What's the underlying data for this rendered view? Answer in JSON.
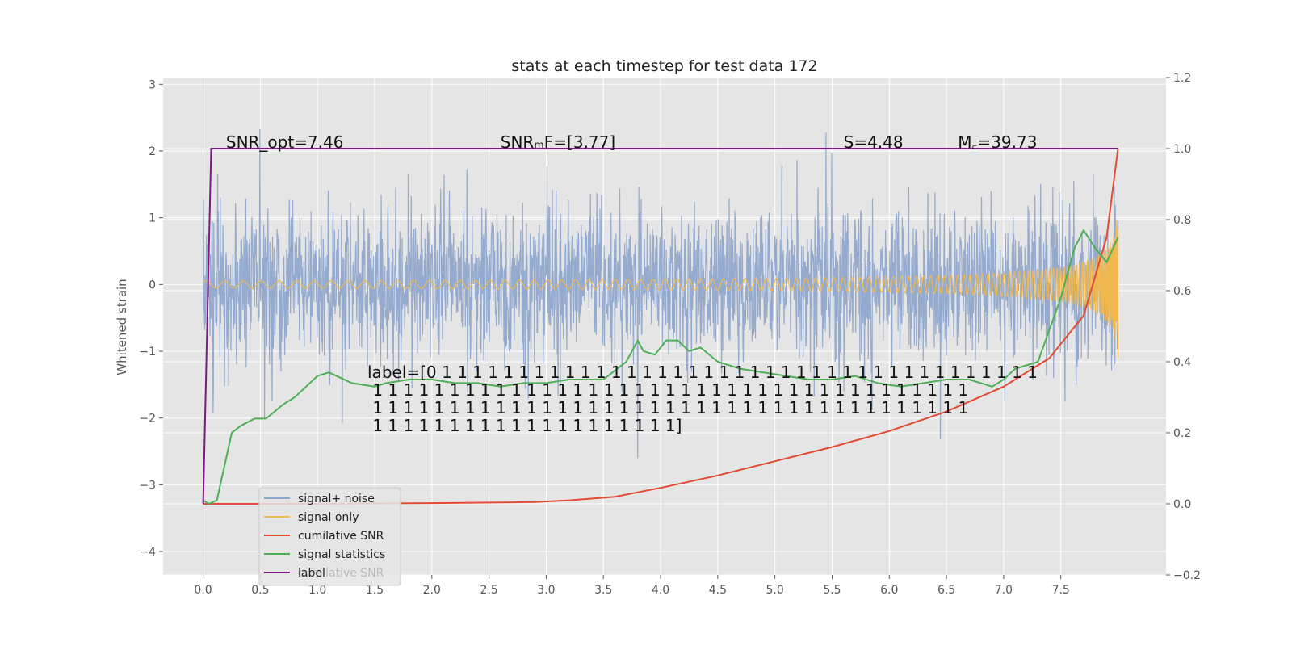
{
  "chart_data": {
    "type": "line",
    "title": "stats at each timestep for test data 172",
    "ylabel": "Whitened strain",
    "xlim": [
      -0.35,
      8.42
    ],
    "ylim": [
      -4.35,
      3.1
    ],
    "y2lim": [
      -0.2,
      1.2
    ],
    "grid": true,
    "xticks": [
      "0.0",
      "0.5",
      "1.0",
      "1.5",
      "2.0",
      "2.5",
      "3.0",
      "3.5",
      "4.0",
      "4.5",
      "5.0",
      "5.5",
      "6.0",
      "6.5",
      "7.0",
      "7.5"
    ],
    "yticks": [
      "3",
      "2",
      "1",
      "0",
      "−1",
      "−2",
      "−3",
      "−4"
    ],
    "y2ticks": [
      "1.2",
      "1.0",
      "0.8",
      "0.6",
      "0.4",
      "0.2",
      "0.0",
      "−0.2"
    ],
    "legend_position": "lower-left",
    "series": [
      {
        "name": "signal+ noise",
        "color": "#8fa6cc",
        "axis": "left",
        "style": "dense-noise",
        "x_range": [
          0,
          8
        ],
        "amplitude": 1.1
      },
      {
        "name": "signal only",
        "color": "#f0b84e",
        "axis": "left",
        "style": "chirp",
        "x_range": [
          0,
          8
        ],
        "amplitude_end": 1.0
      },
      {
        "name": "cumilative SNR",
        "color": "#e24a33",
        "axis": "right",
        "x": [
          0,
          1,
          2,
          2.9,
          3.2,
          3.6,
          4.0,
          4.5,
          5.0,
          5.5,
          6.0,
          6.5,
          7.0,
          7.4,
          7.7,
          7.9,
          8.0
        ],
        "y": [
          0.0,
          0.0,
          0.002,
          0.005,
          0.01,
          0.02,
          0.045,
          0.08,
          0.12,
          0.16,
          0.205,
          0.26,
          0.33,
          0.41,
          0.53,
          0.75,
          1.0
        ]
      },
      {
        "name": "signal statistics",
        "color": "#4daf57",
        "axis": "right",
        "x": [
          0,
          0.05,
          0.12,
          0.25,
          0.33,
          0.45,
          0.55,
          0.7,
          0.8,
          0.9,
          1.0,
          1.1,
          1.3,
          1.5,
          1.6,
          1.8,
          2.0,
          2.2,
          2.4,
          2.6,
          2.8,
          3.0,
          3.2,
          3.5,
          3.7,
          3.8,
          3.85,
          3.95,
          4.05,
          4.15,
          4.25,
          4.35,
          4.5,
          4.7,
          4.9,
          5.1,
          5.3,
          5.5,
          5.7,
          5.9,
          6.1,
          6.3,
          6.5,
          6.7,
          6.9,
          7.0,
          7.1,
          7.3,
          7.5,
          7.62,
          7.7,
          7.8,
          7.9,
          8.0
        ],
        "y": [
          0.01,
          0.0,
          0.01,
          0.2,
          0.22,
          0.24,
          0.24,
          0.28,
          0.3,
          0.33,
          0.36,
          0.37,
          0.34,
          0.33,
          0.34,
          0.35,
          0.35,
          0.34,
          0.34,
          0.33,
          0.34,
          0.34,
          0.35,
          0.35,
          0.4,
          0.46,
          0.43,
          0.42,
          0.46,
          0.46,
          0.43,
          0.44,
          0.4,
          0.38,
          0.37,
          0.36,
          0.35,
          0.35,
          0.36,
          0.34,
          0.33,
          0.34,
          0.35,
          0.35,
          0.33,
          0.35,
          0.38,
          0.4,
          0.58,
          0.72,
          0.77,
          0.72,
          0.68,
          0.75
        ]
      },
      {
        "name": "label",
        "color": "#7a1a82",
        "axis": "right",
        "x": [
          0,
          0.07,
          8.0
        ],
        "y": [
          0.0,
          1.0,
          1.0
        ]
      }
    ],
    "annotations": [
      {
        "text": "SNR_opt=7.46",
        "x": 0.2,
        "y": 2.05
      },
      {
        "text": "SNRₘF=[3.77]",
        "x": 2.6,
        "y": 2.05
      },
      {
        "text": "S=4.48",
        "x": 5.6,
        "y": 2.05
      },
      {
        "text": "M꜀=39.73",
        "x": 6.6,
        "y": 2.05
      }
    ],
    "label_text_lines": [
      "label=[0 1 1 1 1 1 1 1 1 1 1 1 1 1 1 1 1 1 1 1 1 1 1 1 1 1 1 1 1 1 1 1 1 1 1 1 1 1 1 1",
      " 1 1 1 1 1 1 1 1 1 1 1 1 1 1 1 1 1 1 1 1 1 1 1 1 1 1 1 1 1 1 1 1 1 1 1 1 1 1 1",
      " 1 1 1 1 1 1 1 1 1 1 1 1 1 1 1 1 1 1 1 1 1 1 1 1 1 1 1 1 1 1 1 1 1 1 1 1 1 1 1",
      " 1 1 1 1 1 1 1 1 1 1 1 1 1 1 1 1 1 1 1 1]"
    ],
    "legend_ghost_text": "cumilative SNR"
  }
}
